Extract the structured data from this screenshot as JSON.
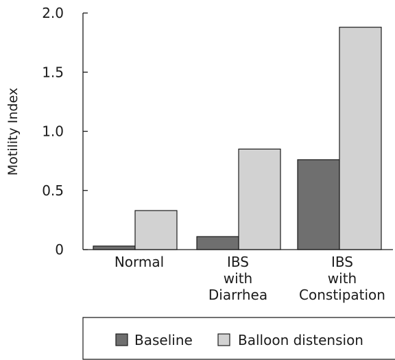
{
  "chart_data": {
    "type": "bar",
    "ylabel": "Motility Index",
    "ylim": [
      0,
      2.0
    ],
    "yticks": [
      {
        "value": 0,
        "label": "0"
      },
      {
        "value": 0.5,
        "label": "0.5"
      },
      {
        "value": 1.0,
        "label": "1.0"
      },
      {
        "value": 1.5,
        "label": "1.5"
      },
      {
        "value": 2.0,
        "label": "2.0"
      }
    ],
    "categories": [
      [
        "Normal"
      ],
      [
        "IBS",
        "with",
        "Diarrhea"
      ],
      [
        "IBS",
        "with",
        "Constipation"
      ]
    ],
    "series": [
      {
        "name": "Baseline",
        "color": "#6f6f6f",
        "values": [
          0.03,
          0.11,
          0.76
        ]
      },
      {
        "name": "Balloon distension",
        "color": "#d2d2d2",
        "values": [
          0.33,
          0.85,
          1.88
        ]
      }
    ],
    "legend_position": "bottom"
  }
}
